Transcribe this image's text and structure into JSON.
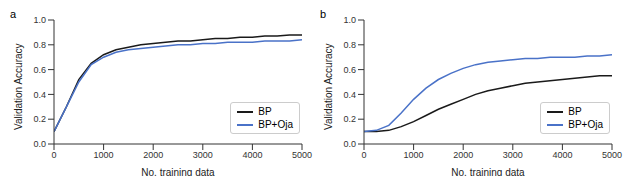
{
  "chart_data": [
    {
      "type": "line",
      "title": "a",
      "x_label": "No. training data",
      "y_label": "Validation Accuracy",
      "x": [
        0,
        250,
        500,
        750,
        1000,
        1250,
        1500,
        1750,
        2000,
        2250,
        2500,
        2750,
        3000,
        3250,
        3500,
        3750,
        4000,
        4250,
        4500,
        4750,
        5000
      ],
      "series": [
        {
          "name": "BP",
          "color": "#1a1a1a",
          "values": [
            0.1,
            0.3,
            0.52,
            0.65,
            0.72,
            0.76,
            0.78,
            0.8,
            0.81,
            0.82,
            0.83,
            0.83,
            0.84,
            0.85,
            0.85,
            0.86,
            0.86,
            0.87,
            0.87,
            0.88,
            0.88
          ]
        },
        {
          "name": "BP+Oja",
          "color": "#4a72c8",
          "values": [
            0.1,
            0.3,
            0.5,
            0.64,
            0.7,
            0.74,
            0.76,
            0.77,
            0.78,
            0.79,
            0.8,
            0.8,
            0.81,
            0.81,
            0.82,
            0.82,
            0.82,
            0.83,
            0.83,
            0.83,
            0.84
          ]
        }
      ],
      "xlim": [
        0,
        5000
      ],
      "xticks": [
        0,
        1000,
        2000,
        3000,
        4000,
        5000
      ],
      "ylim": [
        0,
        1
      ],
      "yticks": [
        {
          "value": 0,
          "label": "0.0"
        },
        0.2,
        0.4,
        0.6,
        0.8,
        {
          "value": 1,
          "label": "1.0"
        }
      ],
      "grid": false,
      "legend": "lower right"
    },
    {
      "type": "line",
      "title": "b",
      "x_label": "No. training data",
      "y_label": "Validation Accuracy",
      "x": [
        0,
        250,
        500,
        750,
        1000,
        1250,
        1500,
        1750,
        2000,
        2250,
        2500,
        2750,
        3000,
        3250,
        3500,
        3750,
        4000,
        4250,
        4500,
        4750,
        5000
      ],
      "series": [
        {
          "name": "BP",
          "color": "#1a1a1a",
          "values": [
            0.1,
            0.1,
            0.11,
            0.14,
            0.18,
            0.23,
            0.28,
            0.32,
            0.36,
            0.4,
            0.43,
            0.45,
            0.47,
            0.49,
            0.5,
            0.51,
            0.52,
            0.53,
            0.54,
            0.55,
            0.55
          ]
        },
        {
          "name": "BP+Oja",
          "color": "#4a72c8",
          "values": [
            0.1,
            0.11,
            0.15,
            0.25,
            0.36,
            0.45,
            0.52,
            0.57,
            0.61,
            0.64,
            0.66,
            0.67,
            0.68,
            0.69,
            0.69,
            0.7,
            0.7,
            0.7,
            0.71,
            0.71,
            0.72
          ]
        }
      ],
      "xlim": [
        0,
        5000
      ],
      "xticks": [
        0,
        1000,
        2000,
        3000,
        4000,
        5000
      ],
      "ylim": [
        0,
        1
      ],
      "yticks": [
        {
          "value": 0,
          "label": "0.0"
        },
        0.2,
        0.4,
        0.6,
        0.8,
        {
          "value": 1,
          "label": "1.0"
        }
      ],
      "grid": false,
      "legend": "lower right"
    }
  ]
}
